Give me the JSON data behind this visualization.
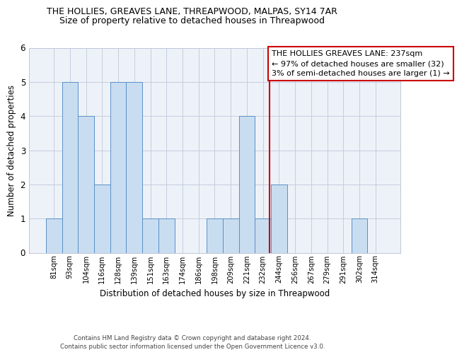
{
  "title_line1": "THE HOLLIES, GREAVES LANE, THREAPWOOD, MALPAS, SY14 7AR",
  "title_line2": "Size of property relative to detached houses in Threapwood",
  "xlabel": "Distribution of detached houses by size in Threapwood",
  "ylabel": "Number of detached properties",
  "categories": [
    "81sqm",
    "93sqm",
    "104sqm",
    "116sqm",
    "128sqm",
    "139sqm",
    "151sqm",
    "163sqm",
    "174sqm",
    "186sqm",
    "198sqm",
    "209sqm",
    "221sqm",
    "232sqm",
    "244sqm",
    "256sqm",
    "267sqm",
    "279sqm",
    "291sqm",
    "302sqm",
    "314sqm"
  ],
  "values": [
    1,
    5,
    4,
    2,
    5,
    5,
    1,
    1,
    0,
    0,
    1,
    1,
    4,
    1,
    2,
    0,
    0,
    0,
    0,
    1,
    0
  ],
  "bar_color": "#c9ddf0",
  "bar_edge_color": "#5b8fc7",
  "background_color": "#edf2f9",
  "grid_color": "#c0c8d8",
  "ref_line_color": "#cc0000",
  "annotation_text": "THE HOLLIES GREAVES LANE: 237sqm\n← 97% of detached houses are smaller (32)\n3% of semi-detached houses are larger (1) →",
  "annotation_box_edge": "#cc0000",
  "annotation_fontsize": 8,
  "footer_text": "Contains HM Land Registry data © Crown copyright and database right 2024.\nContains public sector information licensed under the Open Government Licence v3.0.",
  "ylim": [
    0,
    6
  ],
  "yticks": [
    0,
    1,
    2,
    3,
    4,
    5,
    6
  ],
  "title_fontsize": 9,
  "subtitle_fontsize": 9
}
